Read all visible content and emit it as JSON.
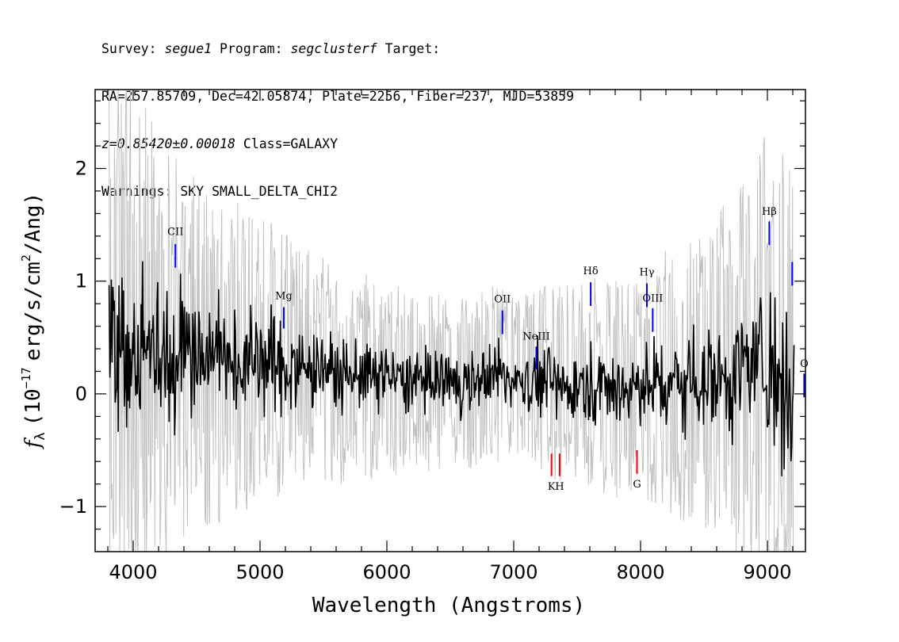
{
  "header": {
    "survey_label": "Survey:",
    "survey": "segue1",
    "program_label": "Program:",
    "program": "segclusterf",
    "target_label": "Target:",
    "line2": "RA=257.85709, Dec=42.05874, Plate=2256, Fiber=237, MJD=53859",
    "redshift": "z=0.85420±0.00018",
    "class": "Class=GALAXY",
    "warnings": "Warnings: SKY SMALL_DELTA_CHI2"
  },
  "chart_data": {
    "type": "line",
    "title": "",
    "xlabel": "Wavelength (Angstroms)",
    "ylabel_parts": {
      "f": "f",
      "lambda": "λ",
      "open": "(10",
      "exp": "−17",
      "unit": "erg/s/cm",
      "sq": "2",
      "close": "/Ang)"
    },
    "xlim": [
      3700,
      9300
    ],
    "ylim": [
      -1.4,
      2.7
    ],
    "x_ticks": [
      4000,
      5000,
      6000,
      7000,
      8000,
      9000
    ],
    "x_tick_labels": [
      "4000",
      "5000",
      "6000",
      "7000",
      "8000",
      "9000"
    ],
    "y_ticks": [
      -1,
      0,
      1,
      2
    ],
    "y_tick_labels": [
      "−1",
      "0",
      "1",
      "2"
    ],
    "grid": false,
    "series": [
      {
        "role": "flux",
        "color": "#000000",
        "x": [
          3800,
          3900,
          4000,
          4100,
          4200,
          4300,
          4400,
          4500,
          4600,
          4700,
          4800,
          4900,
          5000,
          5100,
          5200,
          5300,
          5400,
          5500,
          5600,
          5700,
          5800,
          5900,
          6000,
          6100,
          6200,
          6300,
          6400,
          6500,
          6600,
          6700,
          6800,
          6900,
          7000,
          7100,
          7200,
          7300,
          7400,
          7500,
          7600,
          7700,
          7800,
          7900,
          8000,
          8100,
          8200,
          8300,
          8400,
          8500,
          8600,
          8700,
          8800,
          8900,
          9000,
          9100,
          9200
        ],
        "y": [
          0.55,
          0.5,
          0.45,
          0.42,
          0.4,
          0.38,
          0.36,
          0.35,
          0.35,
          0.33,
          0.32,
          0.3,
          0.3,
          0.28,
          0.26,
          0.24,
          0.22,
          0.2,
          0.18,
          0.17,
          0.16,
          0.15,
          0.14,
          0.13,
          0.12,
          0.11,
          0.1,
          0.1,
          0.1,
          0.12,
          0.18,
          0.15,
          0.12,
          0.12,
          0.12,
          0.1,
          0.08,
          0.08,
          0.12,
          0.06,
          0.05,
          0.06,
          0.08,
          0.1,
          0.1,
          0.12,
          0.14,
          0.15,
          0.17,
          0.18,
          0.2,
          0.25,
          0.3,
          0.2,
          0.0
        ]
      },
      {
        "role": "error",
        "color": "#c0c0c0",
        "x": [
          3800,
          4000,
          4200,
          4400,
          4600,
          4800,
          5000,
          5200,
          5400,
          5600,
          5800,
          6000,
          6200,
          6400,
          6600,
          6800,
          7000,
          7200,
          7400,
          7600,
          7800,
          8000,
          8200,
          8400,
          8600,
          8800,
          9000,
          9200
        ],
        "y": [
          1.1,
          0.9,
          0.75,
          0.65,
          0.6,
          0.55,
          0.5,
          0.45,
          0.4,
          0.38,
          0.36,
          0.34,
          0.32,
          0.3,
          0.3,
          0.3,
          0.3,
          0.32,
          0.34,
          0.36,
          0.38,
          0.4,
          0.45,
          0.5,
          0.55,
          0.65,
          0.8,
          1.0
        ]
      }
    ],
    "annotations": [
      {
        "label": "CII",
        "x": 4333,
        "y1": 1.12,
        "y2": 1.33,
        "label_y": 1.41,
        "color": "#0000ff"
      },
      {
        "label": "Mg",
        "x": 5187,
        "y1": 0.58,
        "y2": 0.77,
        "label_y": 0.84,
        "color": "#0000ff"
      },
      {
        "label": "OII",
        "x": 6911,
        "y1": 0.53,
        "y2": 0.74,
        "label_y": 0.81,
        "color": "#0000ff"
      },
      {
        "label": "NeIII",
        "x": 7178,
        "y1": 0.22,
        "y2": 0.42,
        "label_y": 0.48,
        "color": "#0000ff"
      },
      {
        "label": "Hδ",
        "x": 7607,
        "y1": 0.78,
        "y2": 0.99,
        "label_y": 1.06,
        "color": "#0000ff"
      },
      {
        "label": "Hγ",
        "x": 8050,
        "y1": 0.77,
        "y2": 0.98,
        "label_y": 1.05,
        "color": "#0000ff"
      },
      {
        "label": "OIII",
        "x": 8096,
        "y1": 0.55,
        "y2": 0.76,
        "label_y": 0.82,
        "color": "#0000ff"
      },
      {
        "label": "Hβ",
        "x": 9015,
        "y1": 1.32,
        "y2": 1.53,
        "label_y": 1.59,
        "color": "#0000ff"
      },
      {
        "label": "",
        "x": 9196,
        "y1": 0.96,
        "y2": 1.17,
        "label_y": 1.2,
        "color": "#0000ff"
      },
      {
        "label": "O",
        "x": 9290,
        "y1": -0.03,
        "y2": 0.18,
        "label_y": 0.24,
        "color": "#0000ff"
      },
      {
        "label": "K",
        "x": 7298,
        "y1": -0.73,
        "y2": -0.53,
        "label_y": -0.85,
        "color": "#ff0000"
      },
      {
        "label": "H",
        "x": 7362,
        "y1": -0.73,
        "y2": -0.53,
        "label_y": -0.85,
        "color": "#ff0000"
      },
      {
        "label": "G",
        "x": 7972,
        "y1": -0.71,
        "y2": -0.5,
        "label_y": -0.83,
        "color": "#ff0000"
      }
    ]
  }
}
